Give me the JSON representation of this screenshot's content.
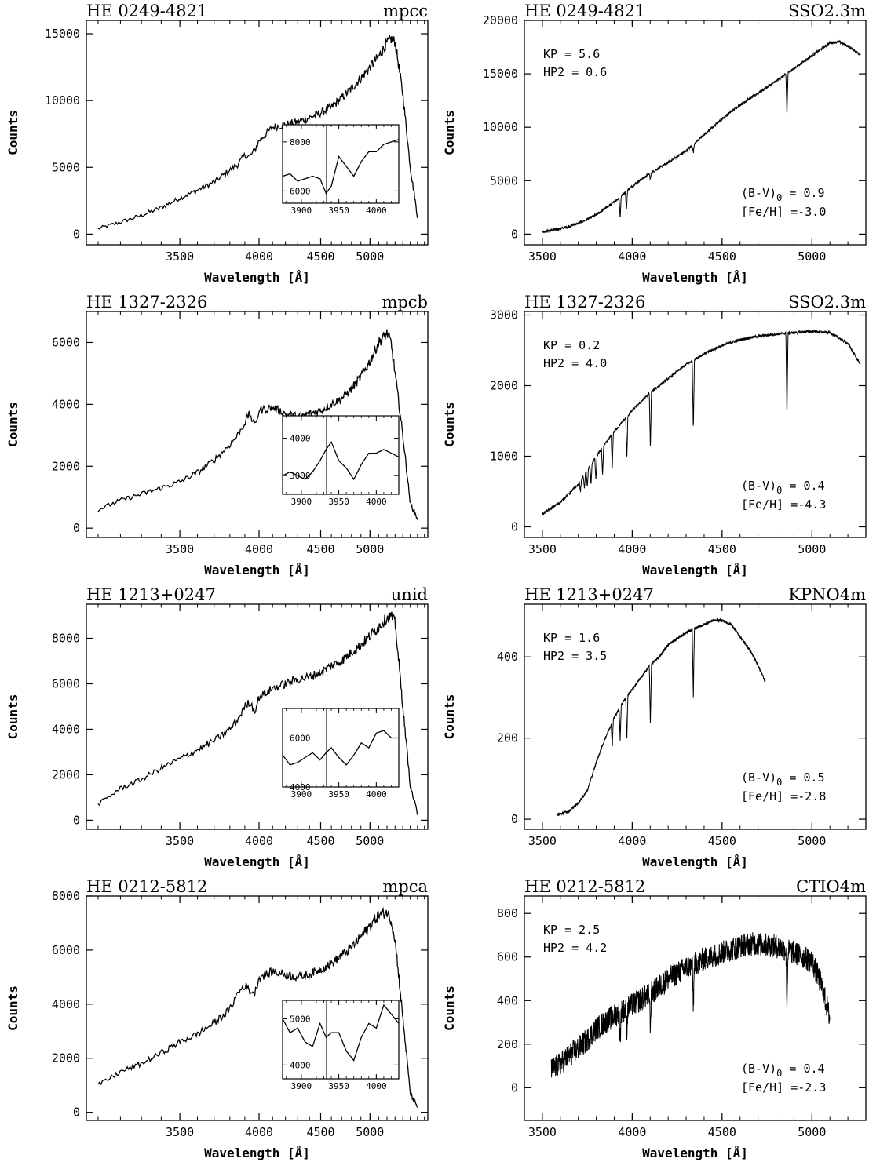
{
  "chart_data": [
    {
      "type": "line",
      "panel": "left",
      "title_left": "HE 0249-4821",
      "title_right": "mpcc",
      "xlabel": "Wavelength [Å]",
      "ylabel": "Counts",
      "x_scale": "reciprocal",
      "xlim": [
        3050,
        5750
      ],
      "ylim": [
        -800,
        16000
      ],
      "xticks": [
        3500,
        4000,
        4500,
        5000
      ],
      "yticks": [
        0,
        5000,
        10000,
        15000
      ],
      "series": [
        {
          "x": [
            3100,
            3200,
            3300,
            3400,
            3500,
            3600,
            3700,
            3800,
            3850,
            3900,
            3933,
            3970,
            4000,
            4100,
            4200,
            4300,
            4400,
            4500,
            4600,
            4700,
            4800,
            4900,
            5000,
            5100,
            5200,
            5250,
            5300,
            5400,
            5500,
            5600
          ],
          "y": [
            400,
            900,
            1400,
            2000,
            2700,
            3300,
            3900,
            4800,
            5200,
            5900,
            5800,
            6300,
            7000,
            8000,
            8200,
            8400,
            8700,
            9100,
            9500,
            10200,
            10900,
            11700,
            12500,
            13300,
            14300,
            14600,
            14400,
            10500,
            5000,
            1300
          ]
        }
      ],
      "inset": {
        "xlim": [
          3875,
          4030
        ],
        "ylim": [
          5500,
          8700
        ],
        "xticks": [
          3900,
          3950,
          4000
        ],
        "yticks": [
          6000,
          8000
        ],
        "vline": 3933.7,
        "x": [
          3875,
          3885,
          3895,
          3905,
          3915,
          3925,
          3933,
          3940,
          3950,
          3960,
          3970,
          3980,
          3990,
          4000,
          4010,
          4020,
          4030
        ],
        "y": [
          6600,
          6700,
          6400,
          6500,
          6600,
          6500,
          5900,
          6200,
          7400,
          7000,
          6600,
          7200,
          7600,
          7600,
          7900,
          8000,
          8100
        ]
      }
    },
    {
      "type": "line",
      "panel": "right",
      "title_left": "HE 0249-4821",
      "title_right": "SSO2.3m",
      "xlabel": "Wavelength [Å]",
      "ylabel": "Counts",
      "xlim": [
        3400,
        5300
      ],
      "ylim": [
        -1000,
        20000
      ],
      "xticks": [
        3500,
        4000,
        4500,
        5000
      ],
      "yticks": [
        0,
        5000,
        10000,
        15000,
        20000
      ],
      "kp_label": "KP",
      "kp_value": "5.6",
      "hp2_label": "HP2",
      "hp2_value": "0.6",
      "bv_label": "(B-V)",
      "bv_subscript": "0",
      "bv_value": "0.9",
      "feh_label": "[Fe/H]",
      "feh_value": "-3.0",
      "series": [
        {
          "x": [
            3500,
            3600,
            3700,
            3800,
            3900,
            4000,
            4100,
            4200,
            4300,
            4400,
            4500,
            4600,
            4700,
            4800,
            4900,
            5000,
            5100,
            5150,
            5200,
            5270
          ],
          "y": [
            200,
            500,
            1000,
            1800,
            3000,
            4500,
            5700,
            6700,
            7800,
            9300,
            10800,
            12100,
            13200,
            14300,
            15500,
            16700,
            17900,
            18000,
            17600,
            16800
          ]
        }
      ],
      "lines": [
        {
          "x": 3933,
          "depth": 2000
        },
        {
          "x": 3968,
          "depth": 1800
        },
        {
          "x": 4101,
          "depth": 600
        },
        {
          "x": 4340,
          "depth": 800
        },
        {
          "x": 4861,
          "depth": 4000
        }
      ]
    },
    {
      "type": "line",
      "panel": "left",
      "title_left": "HE 1327-2326",
      "title_right": "mpcb",
      "xlabel": "Wavelength [Å]",
      "ylabel": "Counts",
      "x_scale": "reciprocal",
      "xlim": [
        3050,
        5750
      ],
      "ylim": [
        -300,
        7000
      ],
      "xticks": [
        3500,
        4000,
        4500,
        5000
      ],
      "yticks": [
        0,
        2000,
        4000,
        6000
      ],
      "series": [
        {
          "x": [
            3100,
            3200,
            3300,
            3400,
            3500,
            3600,
            3700,
            3800,
            3850,
            3900,
            3933,
            3970,
            4000,
            4100,
            4200,
            4300,
            4400,
            4500,
            4600,
            4700,
            4800,
            4900,
            5000,
            5100,
            5200,
            5250,
            5300,
            5400,
            5500,
            5600
          ],
          "y": [
            600,
            900,
            1100,
            1300,
            1500,
            1800,
            2200,
            2700,
            3000,
            3400,
            3700,
            3300,
            3800,
            3900,
            3700,
            3600,
            3700,
            3800,
            4000,
            4200,
            4500,
            4900,
            5400,
            6000,
            6300,
            6000,
            5000,
            3000,
            800,
            300
          ]
        }
      ],
      "inset": {
        "xlim": [
          3875,
          4030
        ],
        "ylim": [
          2500,
          4600
        ],
        "xticks": [
          3900,
          3950,
          4000
        ],
        "yticks": [
          3000,
          4000
        ],
        "vline": 3933.7,
        "x": [
          3875,
          3885,
          3895,
          3905,
          3915,
          3925,
          3933,
          3940,
          3950,
          3960,
          3970,
          3980,
          3990,
          4000,
          4010,
          4020,
          4030
        ],
        "y": [
          3000,
          3100,
          3000,
          2900,
          3100,
          3400,
          3700,
          3900,
          3400,
          3200,
          2900,
          3300,
          3600,
          3600,
          3700,
          3600,
          3500
        ]
      }
    },
    {
      "type": "line",
      "panel": "right",
      "title_left": "HE 1327-2326",
      "title_right": "SSO2.3m",
      "xlabel": "Wavelength [Å]",
      "ylabel": "Counts",
      "xlim": [
        3400,
        5300
      ],
      "ylim": [
        -150,
        3050
      ],
      "xticks": [
        3500,
        4000,
        4500,
        5000
      ],
      "yticks": [
        0,
        1000,
        2000,
        3000
      ],
      "kp_label": "KP",
      "kp_value": "0.2",
      "hp2_label": "HP2",
      "hp2_value": "4.0",
      "bv_label": "(B-V)",
      "bv_subscript": "0",
      "bv_value": "0.4",
      "feh_label": "[Fe/H]",
      "feh_value": "-4.3",
      "series": [
        {
          "x": [
            3500,
            3600,
            3700,
            3750,
            3800,
            3900,
            4000,
            4100,
            4200,
            4300,
            4400,
            4500,
            4600,
            4700,
            4800,
            4900,
            5000,
            5100,
            5200,
            5270
          ],
          "y": [
            180,
            350,
            600,
            800,
            1000,
            1350,
            1650,
            1900,
            2100,
            2300,
            2450,
            2570,
            2650,
            2700,
            2730,
            2750,
            2770,
            2750,
            2600,
            2300
          ]
        }
      ],
      "lines": [
        {
          "x": 3712,
          "depth": 150
        },
        {
          "x": 3734,
          "depth": 200
        },
        {
          "x": 3750,
          "depth": 250
        },
        {
          "x": 3771,
          "depth": 300
        },
        {
          "x": 3798,
          "depth": 350
        },
        {
          "x": 3835,
          "depth": 400
        },
        {
          "x": 3889,
          "depth": 500
        },
        {
          "x": 3970,
          "depth": 600
        },
        {
          "x": 4101,
          "depth": 800
        },
        {
          "x": 4340,
          "depth": 1000
        },
        {
          "x": 4861,
          "depth": 1200
        }
      ]
    },
    {
      "type": "line",
      "panel": "left",
      "title_left": "HE 1213+0247",
      "title_right": "unid",
      "xlabel": "Wavelength [Å]",
      "ylabel": "Counts",
      "x_scale": "reciprocal",
      "xlim": [
        3050,
        5750
      ],
      "ylim": [
        -400,
        9500
      ],
      "xticks": [
        3500,
        4000,
        4500,
        5000
      ],
      "yticks": [
        0,
        2000,
        4000,
        6000,
        8000
      ],
      "series": [
        {
          "x": [
            3100,
            3200,
            3300,
            3400,
            3500,
            3600,
            3700,
            3800,
            3850,
            3900,
            3933,
            3970,
            4000,
            4100,
            4200,
            4300,
            4400,
            4500,
            4600,
            4700,
            4800,
            4900,
            5000,
            5100,
            5200,
            5250,
            5300,
            5400,
            5500,
            5600
          ],
          "y": [
            700,
            1400,
            1800,
            2300,
            2700,
            3100,
            3500,
            4000,
            4400,
            5000,
            5200,
            4800,
            5400,
            5800,
            6000,
            6200,
            6300,
            6500,
            6800,
            7000,
            7400,
            7700,
            8100,
            8500,
            8900,
            9000,
            8700,
            5000,
            1500,
            300
          ]
        }
      ],
      "inset": {
        "xlim": [
          3875,
          4030
        ],
        "ylim": [
          4000,
          7200
        ],
        "xticks": [
          3900,
          3950,
          4000
        ],
        "yticks": [
          4000,
          6000
        ],
        "vline": 3933.7,
        "x": [
          3875,
          3885,
          3895,
          3905,
          3915,
          3925,
          3933,
          3940,
          3950,
          3960,
          3970,
          3980,
          3990,
          4000,
          4010,
          4020,
          4030
        ],
        "y": [
          5300,
          4900,
          5000,
          5200,
          5400,
          5100,
          5400,
          5600,
          5200,
          4900,
          5300,
          5800,
          5600,
          6200,
          6300,
          6000,
          6000
        ]
      }
    },
    {
      "type": "line",
      "panel": "right",
      "title_left": "HE 1213+0247",
      "title_right": "KPNO4m",
      "xlabel": "Wavelength [Å]",
      "ylabel": "Counts",
      "xlim": [
        3400,
        5300
      ],
      "ylim": [
        -25,
        530
      ],
      "xticks": [
        3500,
        4000,
        4500,
        5000
      ],
      "yticks": [
        0,
        200,
        400
      ],
      "kp_label": "KP",
      "kp_value": "1.6",
      "hp2_label": "HP2",
      "hp2_value": "3.5",
      "bv_label": "(B-V)",
      "bv_subscript": "0",
      "bv_value": "0.5",
      "feh_label": "[Fe/H]",
      "feh_value": "-2.8",
      "series": [
        {
          "x": [
            3580,
            3650,
            3700,
            3750,
            3800,
            3850,
            3900,
            3950,
            4000,
            4050,
            4100,
            4150,
            4200,
            4300,
            4400,
            4450,
            4500,
            4550,
            4600,
            4650,
            4700,
            4740
          ],
          "y": [
            10,
            20,
            40,
            70,
            140,
            200,
            250,
            290,
            320,
            350,
            380,
            400,
            430,
            460,
            480,
            490,
            490,
            480,
            450,
            420,
            380,
            340
          ]
        }
      ],
      "lines": [
        {
          "x": 3889,
          "depth": 60
        },
        {
          "x": 3933,
          "depth": 80
        },
        {
          "x": 3970,
          "depth": 110
        },
        {
          "x": 4101,
          "depth": 150
        },
        {
          "x": 4340,
          "depth": 170
        }
      ]
    },
    {
      "type": "line",
      "panel": "left",
      "title_left": "HE 0212-5812",
      "title_right": "mpca",
      "xlabel": "Wavelength [Å]",
      "ylabel": "Counts",
      "x_scale": "reciprocal",
      "xlim": [
        3050,
        5750
      ],
      "ylim": [
        -300,
        8000
      ],
      "xticks": [
        3500,
        4000,
        4500,
        5000
      ],
      "yticks": [
        0,
        2000,
        4000,
        6000,
        8000
      ],
      "series": [
        {
          "x": [
            3100,
            3200,
            3300,
            3400,
            3500,
            3600,
            3700,
            3800,
            3850,
            3900,
            3933,
            3970,
            4000,
            4100,
            4200,
            4300,
            4400,
            4500,
            4600,
            4700,
            4800,
            4900,
            5000,
            5100,
            5200,
            5250,
            5300,
            5400,
            5500,
            5600
          ],
          "y": [
            1000,
            1500,
            1800,
            2200,
            2600,
            2900,
            3300,
            3800,
            4400,
            4700,
            4500,
            4400,
            5000,
            5200,
            5100,
            5000,
            5100,
            5300,
            5500,
            5800,
            6100,
            6500,
            6900,
            7300,
            7400,
            7100,
            6400,
            3500,
            700,
            200
          ]
        }
      ],
      "inset": {
        "xlim": [
          3875,
          4030
        ],
        "ylim": [
          3700,
          5400
        ],
        "xticks": [
          3900,
          3950,
          4000
        ],
        "yticks": [
          4000,
          5000
        ],
        "vline": 3933.7,
        "x": [
          3875,
          3885,
          3895,
          3905,
          3915,
          3925,
          3933,
          3940,
          3950,
          3960,
          3970,
          3980,
          3990,
          4000,
          4010,
          4020,
          4030
        ],
        "y": [
          5000,
          4700,
          4800,
          4500,
          4400,
          4900,
          4600,
          4700,
          4700,
          4300,
          4100,
          4600,
          4900,
          4800,
          5300,
          5100,
          4900
        ]
      }
    },
    {
      "type": "line",
      "panel": "right",
      "title_left": "HE 0212-5812",
      "title_right": "CTIO4m",
      "xlabel": "Wavelength [Å]",
      "ylabel": "Counts",
      "xlim": [
        3400,
        5300
      ],
      "ylim": [
        -150,
        880
      ],
      "xticks": [
        3500,
        4000,
        4500,
        5000
      ],
      "yticks": [
        0,
        200,
        400,
        600,
        800
      ],
      "kp_label": "KP",
      "kp_value": "2.5",
      "hp2_label": "HP2",
      "hp2_value": "4.2",
      "bv_label": "(B-V)",
      "bv_subscript": "0",
      "bv_value": "0.4",
      "feh_label": "[Fe/H]",
      "feh_value": "-2.3",
      "series": [
        {
          "x": [
            3550,
            3600,
            3650,
            3700,
            3750,
            3800,
            3850,
            3900,
            4000,
            4100,
            4200,
            4300,
            4400,
            4500,
            4600,
            4650,
            4700,
            4800,
            4900,
            5000,
            5050,
            5100
          ],
          "y": [
            80,
            110,
            150,
            180,
            220,
            270,
            300,
            330,
            380,
            430,
            500,
            550,
            590,
            620,
            650,
            660,
            660,
            650,
            620,
            580,
            480,
            320
          ]
        }
      ],
      "noise": 55,
      "lines": [
        {
          "x": 3933,
          "depth": 120
        },
        {
          "x": 3970,
          "depth": 100
        },
        {
          "x": 4101,
          "depth": 150
        },
        {
          "x": 4340,
          "depth": 200
        },
        {
          "x": 4861,
          "depth": 250
        }
      ]
    }
  ]
}
